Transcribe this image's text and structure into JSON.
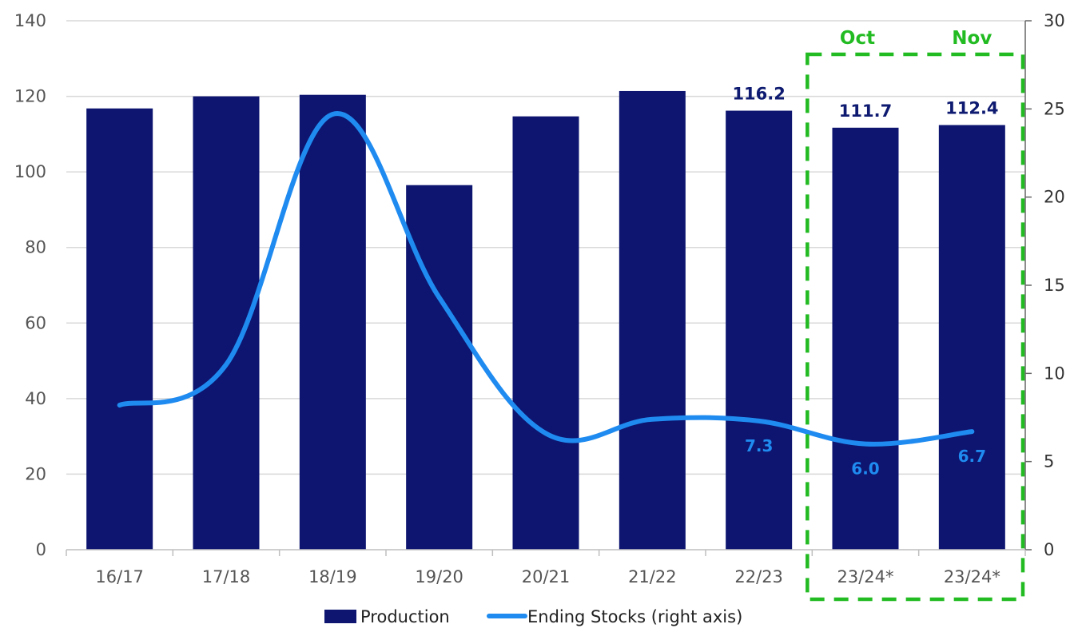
{
  "chart_data": {
    "type": "bar",
    "categories": [
      "16/17",
      "17/18",
      "18/19",
      "19/20",
      "20/21",
      "21/22",
      "22/23",
      "23/24*",
      "23/24*"
    ],
    "series": [
      {
        "name": "Production",
        "type": "bar",
        "axis": "left",
        "color": "#0d1570",
        "values": [
          116.8,
          120.0,
          120.4,
          96.5,
          114.7,
          121.4,
          116.2,
          111.7,
          112.4
        ],
        "data_labels": [
          "",
          "",
          "",
          "",
          "",
          "",
          "116.2",
          "111.7",
          "112.4"
        ]
      },
      {
        "name": "Ending Stocks (right axis)",
        "type": "line",
        "axis": "right",
        "color": "#1f8bf0",
        "values": [
          8.2,
          10.5,
          24.7,
          14.3,
          6.6,
          7.4,
          7.3,
          6.0,
          6.7
        ],
        "data_labels": [
          "",
          "",
          "",
          "",
          "",
          "",
          "7.3",
          "6.0",
          "6.7"
        ]
      }
    ],
    "ylim_left": [
      0,
      140
    ],
    "yticks_left": [
      0,
      20,
      40,
      60,
      80,
      100,
      120,
      140
    ],
    "ylim_right": [
      0,
      30
    ],
    "yticks_right": [
      0,
      5,
      10,
      15,
      20,
      25,
      30
    ],
    "grid": true,
    "legend_position": "bottom",
    "highlight_box": {
      "color": "#22bb22",
      "style": "dashed",
      "labels": [
        "Oct",
        "Nov"
      ]
    }
  }
}
